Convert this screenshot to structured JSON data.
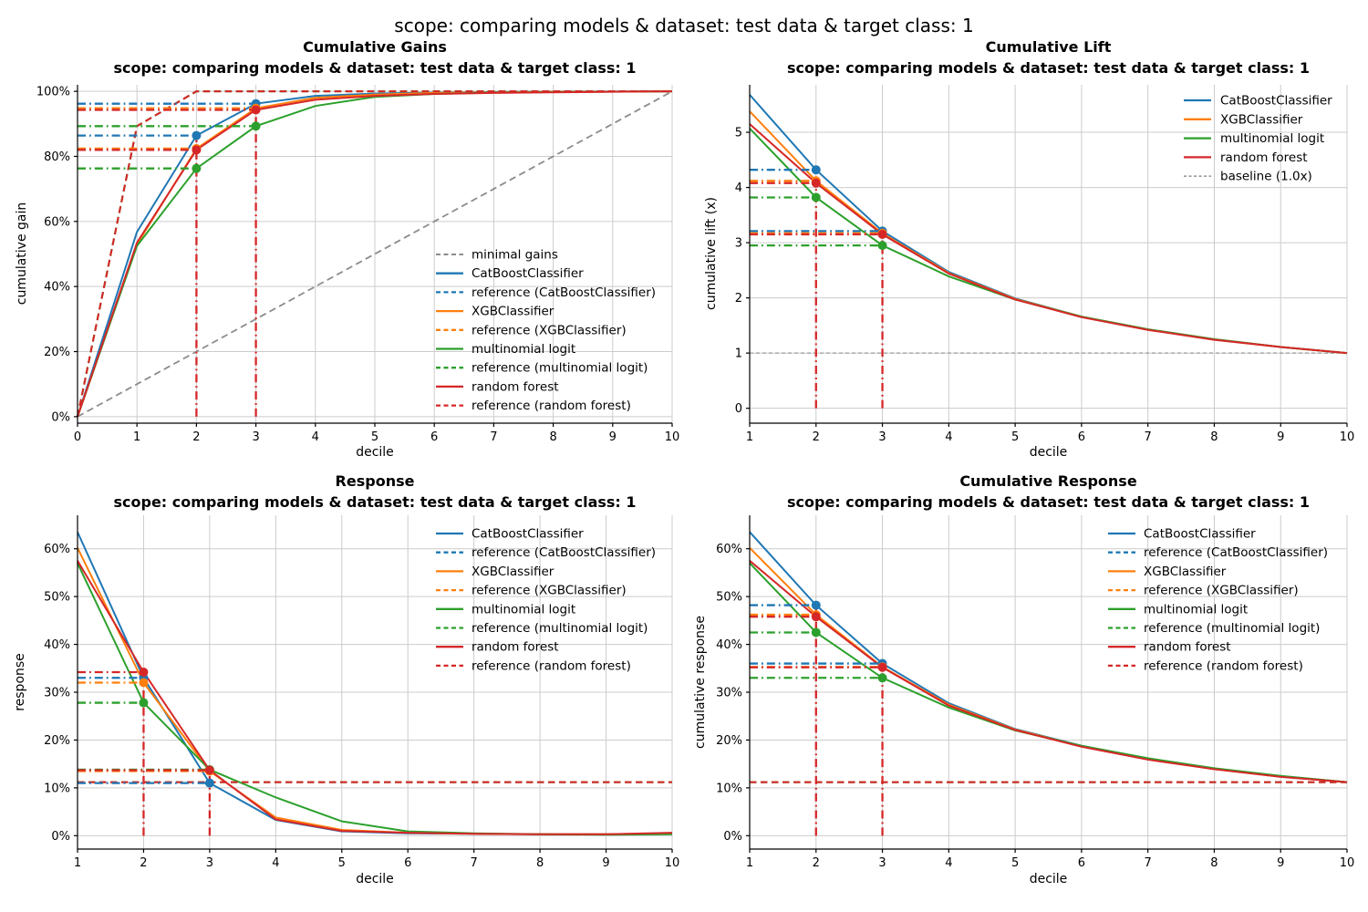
{
  "figure": {
    "title": "scope: comparing models & dataset: test data & target class: 1"
  },
  "chart_data": [
    {
      "type": "line",
      "key": "cumulative-gains",
      "title": "Cumulative Gains",
      "subtitle": "scope: comparing models & dataset: test data & target class: 1",
      "xlabel": "decile",
      "ylabel": "cumulative gain",
      "x": [
        0,
        1,
        2,
        3,
        4,
        5,
        6,
        7,
        8,
        9,
        10
      ],
      "xlim": [
        0,
        10
      ],
      "ylim": [
        -2,
        102
      ],
      "xticks": [
        0,
        1,
        2,
        3,
        4,
        5,
        6,
        7,
        8,
        9,
        10
      ],
      "xtick_labels": [
        "0",
        "1",
        "2",
        "3",
        "4",
        "5",
        "6",
        "7",
        "8",
        "9",
        "10"
      ],
      "yticks": [
        0,
        20,
        40,
        60,
        80,
        100
      ],
      "ytick_labels": [
        "0%",
        "20%",
        "40%",
        "60%",
        "80%",
        "100%"
      ],
      "grid": true,
      "highlight_deciles": [
        2,
        3
      ],
      "series": [
        {
          "name": "minimal gains",
          "color": "#8c8c8c",
          "style": "dashed",
          "lw": 1.8,
          "y": [
            0,
            10,
            20,
            30,
            40,
            50,
            60,
            70,
            80,
            90,
            100
          ],
          "role": "baseline"
        },
        {
          "name": "CatBoostClassifier",
          "color": "#1f77b4",
          "style": "solid",
          "lw": 2,
          "y": [
            0,
            56.8,
            86.4,
            96.2,
            98.6,
            99.3,
            99.6,
            99.8,
            99.9,
            99.95,
            100
          ],
          "markers": [
            2,
            3
          ],
          "guides": true
        },
        {
          "name": "reference (CatBoostClassifier)",
          "color": "#1f77b4",
          "style": "dashed",
          "lw": 2,
          "y": [
            0,
            89.3,
            100,
            100,
            100,
            100,
            100,
            100,
            100,
            100,
            100
          ],
          "role": "reference"
        },
        {
          "name": "XGBClassifier",
          "color": "#ff7f0e",
          "style": "solid",
          "lw": 2,
          "y": [
            0,
            53.0,
            82.4,
            94.8,
            98.0,
            99.0,
            99.5,
            99.7,
            99.85,
            99.9,
            100
          ],
          "markers": [
            2,
            3
          ],
          "guides": true
        },
        {
          "name": "reference (XGBClassifier)",
          "color": "#ff7f0e",
          "style": "dashed",
          "lw": 2,
          "y": [
            0,
            89.3,
            100,
            100,
            100,
            100,
            100,
            100,
            100,
            100,
            100
          ],
          "role": "reference"
        },
        {
          "name": "multinomial logit",
          "color": "#2ca02c",
          "style": "solid",
          "lw": 2,
          "y": [
            0,
            52.5,
            76.3,
            89.3,
            95.5,
            98.3,
            99.2,
            99.6,
            99.8,
            99.9,
            100
          ],
          "markers": [
            2,
            3
          ],
          "guides": true
        },
        {
          "name": "reference (multinomial logit)",
          "color": "#2ca02c",
          "style": "dashed",
          "lw": 2,
          "y": [
            0,
            89.3,
            100,
            100,
            100,
            100,
            100,
            100,
            100,
            100,
            100
          ],
          "role": "reference"
        },
        {
          "name": "random forest",
          "color": "#d62728",
          "style": "solid",
          "lw": 2,
          "y": [
            0,
            53.5,
            82.0,
            94.3,
            97.4,
            98.6,
            99.2,
            99.5,
            99.7,
            99.85,
            100
          ],
          "markers": [
            2,
            3
          ],
          "guides": true
        },
        {
          "name": "reference (random forest)",
          "color": "#d62728",
          "style": "dashed",
          "lw": 2,
          "y": [
            0,
            89.3,
            100,
            100,
            100,
            100,
            100,
            100,
            100,
            100,
            100
          ],
          "role": "reference"
        }
      ],
      "legend": {
        "position": "lower right",
        "order": [
          "minimal gains",
          "CatBoostClassifier",
          "reference (CatBoostClassifier)",
          "XGBClassifier",
          "reference (XGBClassifier)",
          "multinomial logit",
          "reference (multinomial logit)",
          "random forest",
          "reference (random forest)"
        ]
      }
    },
    {
      "type": "line",
      "key": "cumulative-lift",
      "title": "Cumulative Lift",
      "subtitle": "scope: comparing models & dataset: test data & target class: 1",
      "xlabel": "decile",
      "ylabel": "cumulative lift (x)",
      "x": [
        1,
        2,
        3,
        4,
        5,
        6,
        7,
        8,
        9,
        10
      ],
      "xlim": [
        1,
        10
      ],
      "ylim": [
        -0.27,
        5.86
      ],
      "xticks": [
        1,
        2,
        3,
        4,
        5,
        6,
        7,
        8,
        9,
        10
      ],
      "xtick_labels": [
        "1",
        "2",
        "3",
        "4",
        "5",
        "6",
        "7",
        "8",
        "9",
        "10"
      ],
      "yticks": [
        0,
        1,
        2,
        3,
        4,
        5
      ],
      "ytick_labels": [
        "0",
        "1",
        "2",
        "3",
        "4",
        "5"
      ],
      "grid": true,
      "highlight_deciles": [
        2,
        3
      ],
      "series": [
        {
          "name": "baseline (1.0x)",
          "color": "#999999",
          "style": "baseline",
          "lw": 1.3,
          "y": [
            1,
            1,
            1,
            1,
            1,
            1,
            1,
            1,
            1,
            1
          ],
          "role": "baseline"
        },
        {
          "name": "CatBoostClassifier",
          "color": "#1f77b4",
          "style": "solid",
          "lw": 2,
          "y": [
            5.68,
            4.32,
            3.21,
            2.47,
            1.99,
            1.66,
            1.43,
            1.25,
            1.11,
            1.0
          ],
          "markers": [
            2,
            3
          ],
          "guides": true
        },
        {
          "name": "XGBClassifier",
          "color": "#ff7f0e",
          "style": "solid",
          "lw": 2,
          "y": [
            5.38,
            4.12,
            3.17,
            2.45,
            1.98,
            1.66,
            1.43,
            1.25,
            1.11,
            1.0
          ],
          "markers": [
            2,
            3
          ],
          "guides": true
        },
        {
          "name": "multinomial logit",
          "color": "#2ca02c",
          "style": "solid",
          "lw": 2,
          "y": [
            5.07,
            3.82,
            2.95,
            2.39,
            1.97,
            1.66,
            1.43,
            1.25,
            1.11,
            1.0
          ],
          "markers": [
            2,
            3
          ],
          "guides": true
        },
        {
          "name": "random forest",
          "color": "#d62728",
          "style": "solid",
          "lw": 2,
          "y": [
            5.15,
            4.08,
            3.15,
            2.44,
            1.97,
            1.65,
            1.42,
            1.24,
            1.11,
            1.0
          ],
          "markers": [
            2,
            3
          ],
          "guides": true
        }
      ],
      "legend": {
        "position": "upper right",
        "order": [
          "CatBoostClassifier",
          "XGBClassifier",
          "multinomial logit",
          "random forest",
          "baseline (1.0x)"
        ]
      }
    },
    {
      "type": "line",
      "key": "response",
      "title": "Response",
      "subtitle": "scope: comparing models & dataset: test data & target class: 1",
      "xlabel": "decile",
      "ylabel": "response",
      "x": [
        1,
        2,
        3,
        4,
        5,
        6,
        7,
        8,
        9,
        10
      ],
      "xlim": [
        1,
        10
      ],
      "ylim": [
        -2.8,
        67
      ],
      "xticks": [
        1,
        2,
        3,
        4,
        5,
        6,
        7,
        8,
        9,
        10
      ],
      "xtick_labels": [
        "1",
        "2",
        "3",
        "4",
        "5",
        "6",
        "7",
        "8",
        "9",
        "10"
      ],
      "yticks": [
        0,
        10,
        20,
        30,
        40,
        50,
        60
      ],
      "ytick_labels": [
        "0%",
        "10%",
        "20%",
        "30%",
        "40%",
        "50%",
        "60%"
      ],
      "grid": true,
      "highlight_deciles": [
        2,
        3
      ],
      "series": [
        {
          "name": "CatBoostClassifier",
          "color": "#1f77b4",
          "style": "solid",
          "lw": 2,
          "y": [
            63.5,
            33.0,
            11.0,
            3.3,
            0.9,
            0.5,
            0.4,
            0.3,
            0.3,
            0.4
          ],
          "markers": [
            2,
            3
          ],
          "guides": true
        },
        {
          "name": "reference (CatBoostClassifier)",
          "color": "#1f77b4",
          "style": "dashed",
          "lw": 2,
          "y": [
            11.2,
            11.2,
            11.2,
            11.2,
            11.2,
            11.2,
            11.2,
            11.2,
            11.2,
            11.2
          ],
          "role": "reference"
        },
        {
          "name": "XGBClassifier",
          "color": "#ff7f0e",
          "style": "solid",
          "lw": 2,
          "y": [
            60.2,
            32.0,
            13.5,
            3.8,
            1.2,
            0.6,
            0.4,
            0.3,
            0.3,
            0.5
          ],
          "markers": [
            2,
            3
          ],
          "guides": true
        },
        {
          "name": "reference (XGBClassifier)",
          "color": "#ff7f0e",
          "style": "dashed",
          "lw": 2,
          "y": [
            11.2,
            11.2,
            11.2,
            11.2,
            11.2,
            11.2,
            11.2,
            11.2,
            11.2,
            11.2
          ],
          "role": "reference"
        },
        {
          "name": "multinomial logit",
          "color": "#2ca02c",
          "style": "solid",
          "lw": 2,
          "y": [
            57.0,
            27.8,
            13.8,
            8.0,
            3.0,
            0.9,
            0.5,
            0.3,
            0.2,
            0.3
          ],
          "markers": [
            2,
            3
          ],
          "guides": true
        },
        {
          "name": "reference (multinomial logit)",
          "color": "#2ca02c",
          "style": "dashed",
          "lw": 2,
          "y": [
            11.2,
            11.2,
            11.2,
            11.2,
            11.2,
            11.2,
            11.2,
            11.2,
            11.2,
            11.2
          ],
          "role": "reference"
        },
        {
          "name": "random forest",
          "color": "#d62728",
          "style": "solid",
          "lw": 2,
          "y": [
            57.5,
            34.2,
            13.7,
            3.4,
            1.0,
            0.6,
            0.4,
            0.3,
            0.3,
            0.6
          ],
          "markers": [
            2,
            3
          ],
          "guides": true
        },
        {
          "name": "reference (random forest)",
          "color": "#d62728",
          "style": "dashed",
          "lw": 2,
          "y": [
            11.2,
            11.2,
            11.2,
            11.2,
            11.2,
            11.2,
            11.2,
            11.2,
            11.2,
            11.2
          ],
          "role": "reference"
        }
      ],
      "legend": {
        "position": "upper right",
        "order": [
          "CatBoostClassifier",
          "reference (CatBoostClassifier)",
          "XGBClassifier",
          "reference (XGBClassifier)",
          "multinomial logit",
          "reference (multinomial logit)",
          "random forest",
          "reference (random forest)"
        ]
      }
    },
    {
      "type": "line",
      "key": "cumulative-response",
      "title": "Cumulative Response",
      "subtitle": "scope: comparing models & dataset: test data & target class: 1",
      "xlabel": "decile",
      "ylabel": "cumulative response",
      "x": [
        1,
        2,
        3,
        4,
        5,
        6,
        7,
        8,
        9,
        10
      ],
      "xlim": [
        1,
        10
      ],
      "ylim": [
        -2.8,
        67
      ],
      "xticks": [
        1,
        2,
        3,
        4,
        5,
        6,
        7,
        8,
        9,
        10
      ],
      "xtick_labels": [
        "1",
        "2",
        "3",
        "4",
        "5",
        "6",
        "7",
        "8",
        "9",
        "10"
      ],
      "yticks": [
        0,
        10,
        20,
        30,
        40,
        50,
        60
      ],
      "ytick_labels": [
        "0%",
        "10%",
        "20%",
        "30%",
        "40%",
        "50%",
        "60%"
      ],
      "grid": true,
      "highlight_deciles": [
        2,
        3
      ],
      "series": [
        {
          "name": "CatBoostClassifier",
          "color": "#1f77b4",
          "style": "solid",
          "lw": 2,
          "y": [
            63.5,
            48.2,
            36.0,
            27.7,
            22.3,
            18.8,
            16.1,
            14.0,
            12.4,
            11.2
          ],
          "markers": [
            2,
            3
          ],
          "guides": true
        },
        {
          "name": "reference (CatBoostClassifier)",
          "color": "#1f77b4",
          "style": "dashed",
          "lw": 2,
          "y": [
            11.2,
            11.2,
            11.2,
            11.2,
            11.2,
            11.2,
            11.2,
            11.2,
            11.2,
            11.2
          ],
          "role": "reference"
        },
        {
          "name": "XGBClassifier",
          "color": "#ff7f0e",
          "style": "solid",
          "lw": 2,
          "y": [
            60.2,
            46.2,
            35.3,
            27.4,
            22.2,
            18.7,
            16.0,
            13.9,
            12.4,
            11.2
          ],
          "markers": [
            2,
            3
          ],
          "guides": true
        },
        {
          "name": "reference (XGBClassifier)",
          "color": "#ff7f0e",
          "style": "dashed",
          "lw": 2,
          "y": [
            11.2,
            11.2,
            11.2,
            11.2,
            11.2,
            11.2,
            11.2,
            11.2,
            11.2,
            11.2
          ],
          "role": "reference"
        },
        {
          "name": "multinomial logit",
          "color": "#2ca02c",
          "style": "solid",
          "lw": 2,
          "y": [
            57.0,
            42.5,
            33.0,
            26.8,
            22.0,
            18.8,
            16.2,
            14.1,
            12.5,
            11.2
          ],
          "markers": [
            2,
            3
          ],
          "guides": true
        },
        {
          "name": "reference (multinomial logit)",
          "color": "#2ca02c",
          "style": "dashed",
          "lw": 2,
          "y": [
            11.2,
            11.2,
            11.2,
            11.2,
            11.2,
            11.2,
            11.2,
            11.2,
            11.2,
            11.2
          ],
          "role": "reference"
        },
        {
          "name": "random forest",
          "color": "#d62728",
          "style": "solid",
          "lw": 2,
          "y": [
            57.5,
            45.8,
            35.2,
            27.2,
            22.1,
            18.6,
            15.9,
            13.9,
            12.3,
            11.2
          ],
          "markers": [
            2,
            3
          ],
          "guides": true
        },
        {
          "name": "reference (random forest)",
          "color": "#d62728",
          "style": "dashed",
          "lw": 2,
          "y": [
            11.2,
            11.2,
            11.2,
            11.2,
            11.2,
            11.2,
            11.2,
            11.2,
            11.2,
            11.2
          ],
          "role": "reference"
        }
      ],
      "legend": {
        "position": "upper right",
        "order": [
          "CatBoostClassifier",
          "reference (CatBoostClassifier)",
          "XGBClassifier",
          "reference (XGBClassifier)",
          "multinomial logit",
          "reference (multinomial logit)",
          "random forest",
          "reference (random forest)"
        ]
      }
    }
  ]
}
